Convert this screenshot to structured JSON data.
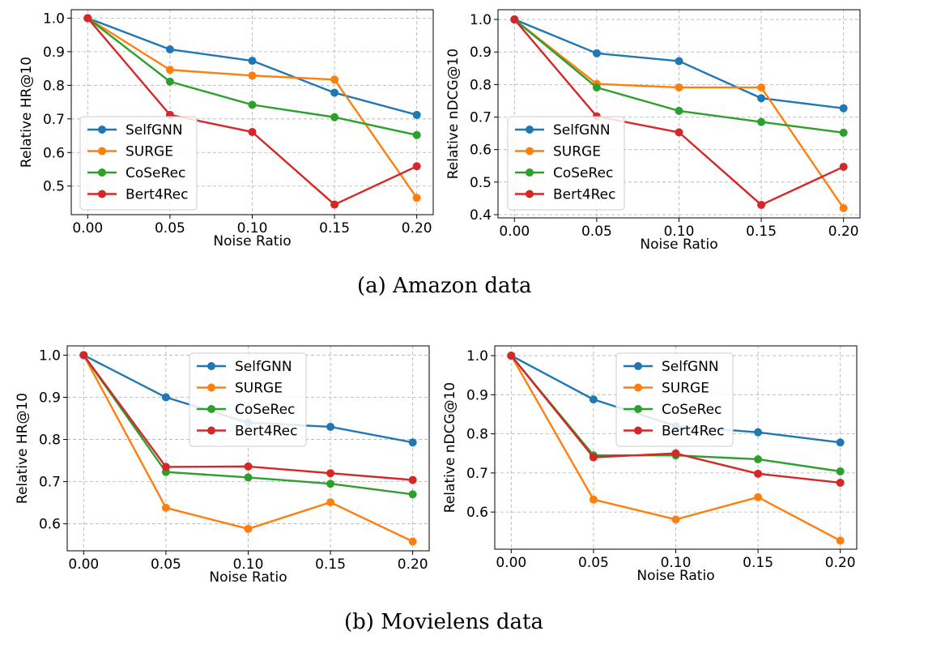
{
  "captions": {
    "a": "(a)  Amazon data",
    "b": "(b)  Movielens data"
  },
  "colors": {
    "SelfGNN": "#1f77b4",
    "SURGE": "#ff7f0e",
    "CoSeRec": "#2ca02c",
    "Bert4Rec": "#d62728"
  },
  "chart_data": [
    {
      "type": "line",
      "group": "Amazon data",
      "x": [
        0.0,
        0.05,
        0.1,
        0.15,
        0.2
      ],
      "xticks": [
        "0.00",
        "0.05",
        "0.10",
        "0.15",
        "0.20"
      ],
      "xlabel": "Noise Ratio",
      "ylabel": "Relative HR@10",
      "xlim": [
        -0.01,
        0.21
      ],
      "ylim": [
        0.415,
        1.025
      ],
      "yticks": [
        0.5,
        0.6,
        0.7,
        0.8,
        0.9,
        1.0
      ],
      "ytick_labels": [
        "0.5",
        "0.6",
        "0.7",
        "0.8",
        "0.9",
        "1.0"
      ],
      "grid": true,
      "legend": "lower-left",
      "series": [
        {
          "name": "SelfGNN",
          "values": [
            1.0,
            0.907,
            0.873,
            0.778,
            0.712
          ]
        },
        {
          "name": "SURGE",
          "values": [
            1.0,
            0.846,
            0.829,
            0.817,
            0.465
          ]
        },
        {
          "name": "CoSeRec",
          "values": [
            1.0,
            0.811,
            0.742,
            0.705,
            0.652
          ]
        },
        {
          "name": "Bert4Rec",
          "values": [
            1.0,
            0.712,
            0.661,
            0.445,
            0.559
          ]
        }
      ]
    },
    {
      "type": "line",
      "group": "Amazon data",
      "x": [
        0.0,
        0.05,
        0.1,
        0.15,
        0.2
      ],
      "xticks": [
        "0.00",
        "0.05",
        "0.10",
        "0.15",
        "0.20"
      ],
      "xlabel": "Noise Ratio",
      "ylabel": "Relative nDCG@10",
      "xlim": [
        -0.01,
        0.21
      ],
      "ylim": [
        0.39,
        1.03
      ],
      "yticks": [
        0.4,
        0.5,
        0.6,
        0.7,
        0.8,
        0.9,
        1.0
      ],
      "ytick_labels": [
        "0.4",
        "0.5",
        "0.6",
        "0.7",
        "0.8",
        "0.9",
        "1.0"
      ],
      "grid": true,
      "legend": "lower-left",
      "series": [
        {
          "name": "SelfGNN",
          "values": [
            1.0,
            0.896,
            0.872,
            0.758,
            0.727
          ]
        },
        {
          "name": "SURGE",
          "values": [
            1.0,
            0.802,
            0.791,
            0.791,
            0.42
          ]
        },
        {
          "name": "CoSeRec",
          "values": [
            1.0,
            0.791,
            0.719,
            0.685,
            0.652
          ]
        },
        {
          "name": "Bert4Rec",
          "values": [
            1.0,
            0.702,
            0.653,
            0.43,
            0.547
          ]
        }
      ]
    },
    {
      "type": "line",
      "group": "Movielens data",
      "x": [
        0.0,
        0.05,
        0.1,
        0.15,
        0.2
      ],
      "xticks": [
        "0.00",
        "0.05",
        "0.10",
        "0.15",
        "0.20"
      ],
      "xlabel": "Noise Ratio",
      "ylabel": "Relative HR@10",
      "xlim": [
        -0.01,
        0.21
      ],
      "ylim": [
        0.536,
        1.022
      ],
      "yticks": [
        0.6,
        0.7,
        0.8,
        0.9,
        1.0
      ],
      "ytick_labels": [
        "0.6",
        "0.7",
        "0.8",
        "0.9",
        "1.0"
      ],
      "grid": true,
      "legend": "top-center",
      "series": [
        {
          "name": "SelfGNN",
          "values": [
            1.0,
            0.9,
            0.84,
            0.83,
            0.793
          ]
        },
        {
          "name": "SURGE",
          "values": [
            1.0,
            0.638,
            0.588,
            0.651,
            0.558
          ]
        },
        {
          "name": "CoSeRec",
          "values": [
            1.0,
            0.723,
            0.71,
            0.695,
            0.67
          ]
        },
        {
          "name": "Bert4Rec",
          "values": [
            1.0,
            0.735,
            0.736,
            0.72,
            0.704
          ]
        }
      ]
    },
    {
      "type": "line",
      "group": "Movielens data",
      "x": [
        0.0,
        0.05,
        0.1,
        0.15,
        0.2
      ],
      "xticks": [
        "0.00",
        "0.05",
        "0.10",
        "0.15",
        "0.20"
      ],
      "xlabel": "Noise Ratio",
      "ylabel": "Relative nDCG@10",
      "xlim": [
        -0.01,
        0.21
      ],
      "ylim": [
        0.505,
        1.025
      ],
      "yticks": [
        0.6,
        0.7,
        0.8,
        0.9,
        1.0
      ],
      "ytick_labels": [
        "0.6",
        "0.7",
        "0.8",
        "0.9",
        "1.0"
      ],
      "grid": true,
      "legend": "top-center",
      "series": [
        {
          "name": "SelfGNN",
          "values": [
            1.0,
            0.888,
            0.82,
            0.804,
            0.778
          ]
        },
        {
          "name": "SURGE",
          "values": [
            1.0,
            0.632,
            0.581,
            0.638,
            0.527
          ]
        },
        {
          "name": "CoSeRec",
          "values": [
            1.0,
            0.745,
            0.745,
            0.735,
            0.704
          ]
        },
        {
          "name": "Bert4Rec",
          "values": [
            1.0,
            0.74,
            0.75,
            0.698,
            0.675
          ]
        }
      ]
    }
  ]
}
